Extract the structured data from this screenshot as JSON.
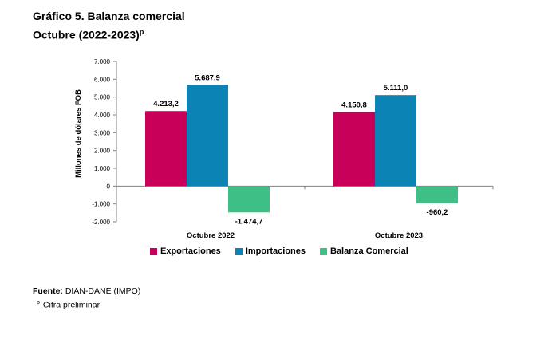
{
  "header": {
    "title_line1": "Gráfico 5. Balanza comercial",
    "title_line2": "Octubre (2022-2023)",
    "title_sup": "p"
  },
  "chart_data": {
    "type": "bar",
    "categories": [
      "Octubre 2022",
      "Octubre 2023"
    ],
    "series": [
      {
        "name": "Exportaciones",
        "values": [
          4213.2,
          4150.8
        ],
        "labels": [
          "4.213,2",
          "4.150,8"
        ],
        "color": "#C8005A"
      },
      {
        "name": "Importaciones",
        "values": [
          5687.9,
          5111.0
        ],
        "labels": [
          "5.687,9",
          "5.111,0"
        ],
        "color": "#0B84B5"
      },
      {
        "name": "Balanza Comercial",
        "values": [
          -1474.7,
          -960.2
        ],
        "labels": [
          "-1.474,7",
          "-960,2"
        ],
        "color": "#3DBF85"
      }
    ],
    "ylabel": "Millones de dólares FOB",
    "ylim": [
      -2000,
      7000
    ],
    "yticks": [
      7000,
      6000,
      5000,
      4000,
      3000,
      2000,
      1000,
      0,
      -1000,
      -2000
    ],
    "ytick_labels": [
      "7.000",
      "6.000",
      "5.000",
      "4.000",
      "3.000",
      "2.000",
      "1.000",
      "0",
      "-1.000",
      "-2.000"
    ],
    "grid": false,
    "legend": "bottom"
  },
  "footer": {
    "source_label": "Fuente:",
    "source_text": "DIAN-DANE (IMPO)",
    "note_sup": "p",
    "note_text": "Cifra preliminar"
  }
}
